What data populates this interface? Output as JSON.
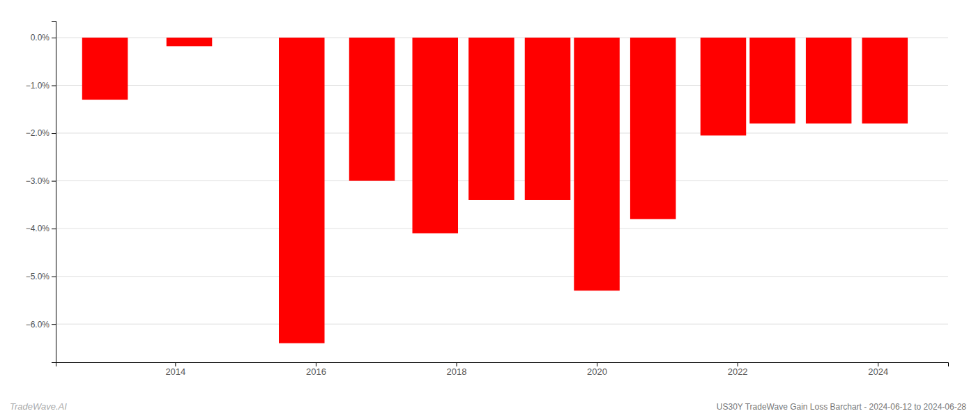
{
  "chart_data": {
    "type": "bar",
    "title": "US30Y TradeWave Gain Loss Barchart - 2024-06-12 to 2024-06-28",
    "annotations": [
      "TradeWave.AI"
    ],
    "x": [
      2013.0,
      2014.2,
      2015.8,
      2016.8,
      2017.7,
      2018.5,
      2019.3,
      2020.0,
      2020.8,
      2021.8,
      2022.5,
      2023.3,
      2024.1
    ],
    "values": [
      -1.3,
      -0.18,
      -6.4,
      -3.0,
      -4.1,
      -3.4,
      -3.4,
      -5.3,
      -3.8,
      -2.05,
      -1.8,
      -1.8,
      -1.8
    ],
    "color": "#ff0000",
    "xlim": [
      2012.3,
      2025.0
    ],
    "xticks": [
      2014,
      2016,
      2018,
      2020,
      2022,
      2024
    ],
    "ylim": [
      -6.8,
      0.35
    ],
    "yticks": [
      {
        "value": 0.0,
        "label": "0.0%"
      },
      {
        "value": -1.0,
        "label": "−1.0%"
      },
      {
        "value": -2.0,
        "label": "−2.0%"
      },
      {
        "value": -3.0,
        "label": "−3.0%"
      },
      {
        "value": -4.0,
        "label": "−4.0%"
      },
      {
        "value": -5.0,
        "label": "−5.0%"
      },
      {
        "value": -6.0,
        "label": "−6.0%"
      }
    ],
    "grid": true
  }
}
